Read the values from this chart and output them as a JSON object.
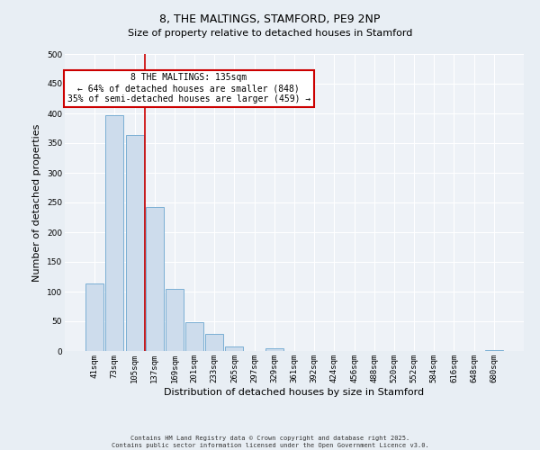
{
  "title": "8, THE MALTINGS, STAMFORD, PE9 2NP",
  "subtitle": "Size of property relative to detached houses in Stamford",
  "xlabel": "Distribution of detached houses by size in Stamford",
  "ylabel": "Number of detached properties",
  "bar_labels": [
    "41sqm",
    "73sqm",
    "105sqm",
    "137sqm",
    "169sqm",
    "201sqm",
    "233sqm",
    "265sqm",
    "297sqm",
    "329sqm",
    "361sqm",
    "392sqm",
    "424sqm",
    "456sqm",
    "488sqm",
    "520sqm",
    "552sqm",
    "584sqm",
    "616sqm",
    "648sqm",
    "680sqm"
  ],
  "bar_values": [
    113,
    397,
    364,
    242,
    105,
    49,
    29,
    8,
    0,
    5,
    0,
    0,
    0,
    0,
    0,
    0,
    0,
    0,
    0,
    0,
    2
  ],
  "bar_color": "#cddcec",
  "bar_edge_color": "#7aafd4",
  "vline_color": "#cc0000",
  "vline_x": 2.5,
  "annotation_text": "8 THE MALTINGS: 135sqm\n← 64% of detached houses are smaller (848)\n35% of semi-detached houses are larger (459) →",
  "annotation_box_facecolor": "#ffffff",
  "annotation_box_edgecolor": "#cc0000",
  "ylim": [
    0,
    500
  ],
  "yticks": [
    0,
    50,
    100,
    150,
    200,
    250,
    300,
    350,
    400,
    450,
    500
  ],
  "footer_line1": "Contains HM Land Registry data © Crown copyright and database right 2025.",
  "footer_line2": "Contains public sector information licensed under the Open Government Licence v3.0.",
  "bg_color": "#e8eef4",
  "plot_bg_color": "#eef2f7",
  "title_fontsize": 9,
  "subtitle_fontsize": 8,
  "tick_fontsize": 6.5,
  "ylabel_fontsize": 8,
  "xlabel_fontsize": 8,
  "annotation_fontsize": 7,
  "footer_fontsize": 5
}
